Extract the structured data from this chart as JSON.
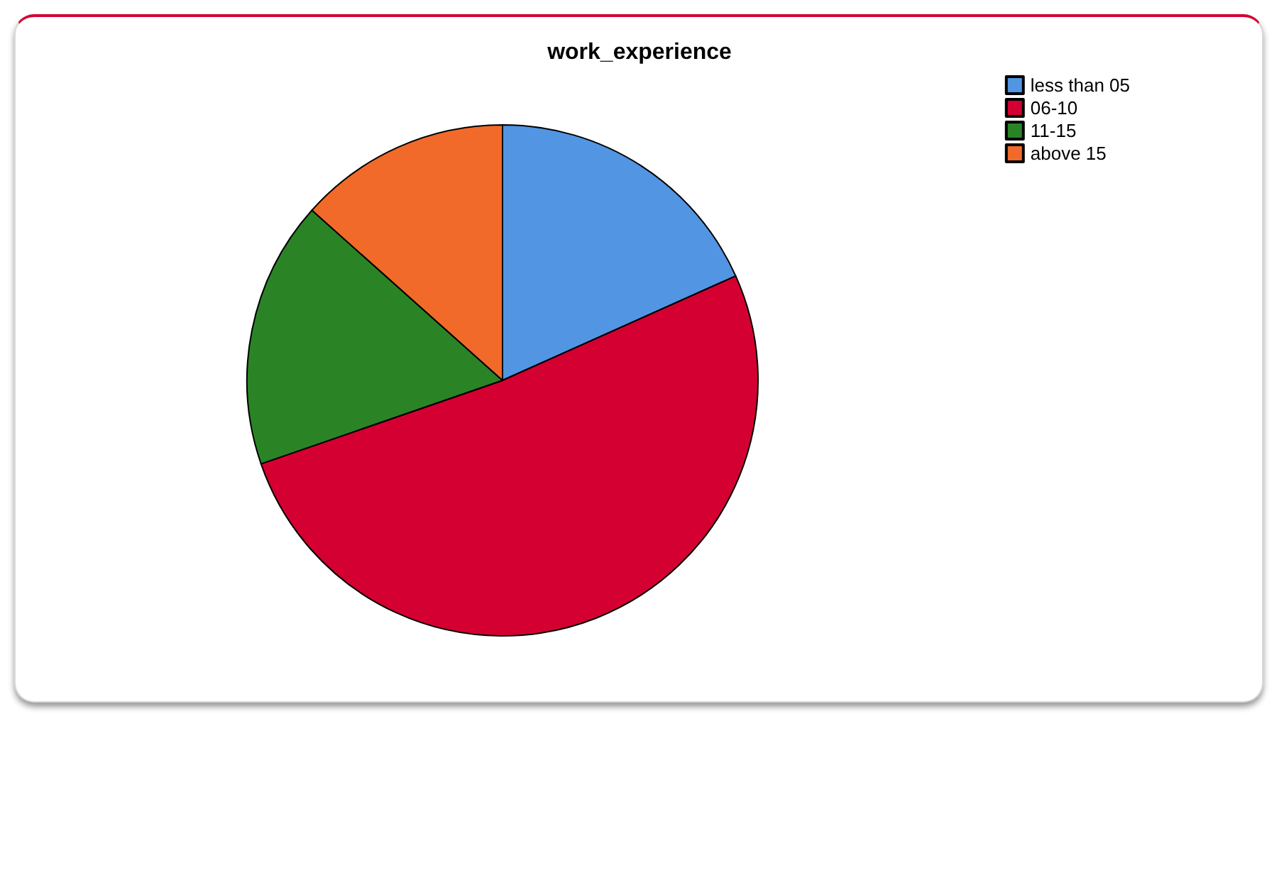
{
  "chart_data": {
    "type": "pie",
    "title": "work_experience",
    "categories": [
      "less than 05",
      "06-10",
      "11-15",
      "above 15"
    ],
    "values": [
      18.3,
      51.4,
      16.9,
      13.4
    ],
    "colors": [
      "#5295e2",
      "#d50032",
      "#2a8426",
      "#f26a2a"
    ],
    "legend": "top right"
  }
}
